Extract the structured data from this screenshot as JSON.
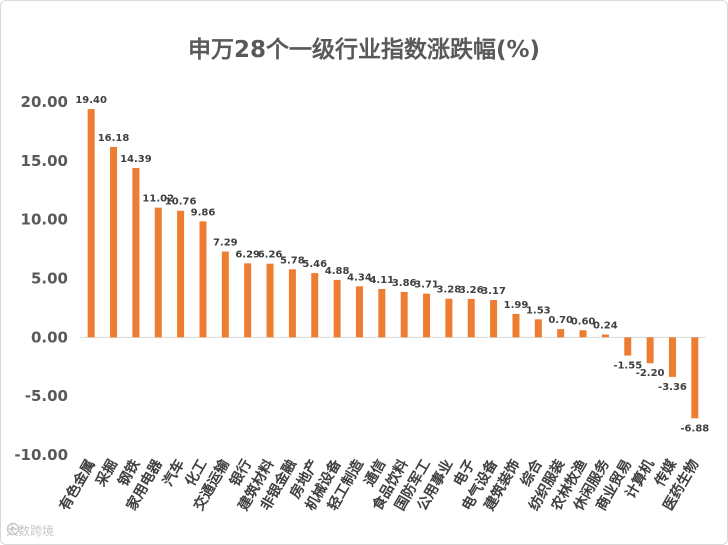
{
  "chart_data": {
    "type": "bar",
    "title": "申万28个一级行业指数涨跌幅(%)",
    "xlabel": "",
    "ylabel": "",
    "ylim": [
      -10,
      20
    ],
    "yticks": [
      "20.00",
      "15.00",
      "10.00",
      "5.00",
      "0.00",
      "-5.00",
      "-10.00"
    ],
    "ytick_values": [
      20,
      15,
      10,
      5,
      0,
      -5,
      -10
    ],
    "grid": false,
    "categories": [
      "有色金属",
      "采掘",
      "钢铁",
      "家用电器",
      "汽车",
      "化工",
      "交通运输",
      "银行",
      "建筑材料",
      "非银金融",
      "房地产",
      "机械设备",
      "轻工制造",
      "通信",
      "食品饮料",
      "国防军工",
      "公用事业",
      "电子",
      "电气设备",
      "建筑装饰",
      "综合",
      "纺织服装",
      "农林牧渔",
      "休闲服务",
      "商业贸易",
      "计算机",
      "传媒",
      "医药生物"
    ],
    "values": [
      19.4,
      16.18,
      14.39,
      11.02,
      10.76,
      9.86,
      7.29,
      6.29,
      6.26,
      5.78,
      5.46,
      4.88,
      4.34,
      4.11,
      3.86,
      3.71,
      3.28,
      3.26,
      3.17,
      1.99,
      1.53,
      0.7,
      0.6,
      0.24,
      -1.55,
      -2.2,
      -3.36,
      -6.88
    ],
    "data_labels": [
      "19.40",
      "16.18",
      "14.39",
      "11.02",
      "10.76",
      "9.86",
      "7.29",
      "6.29",
      "6.26",
      "5.78",
      "5.46",
      "4.88",
      "4.34",
      "4.11",
      "3.86",
      "3.71",
      "3.28",
      "3.26",
      "3.17",
      "1.99",
      "1.53",
      "0.70",
      "0.60",
      "0.24",
      "-1.55",
      "-2.20",
      "-3.36",
      "-6.88"
    ],
    "bar_color": "#ED7D31"
  },
  "watermark": {
    "text": "大数跨境",
    "icon": "logo-icon"
  }
}
